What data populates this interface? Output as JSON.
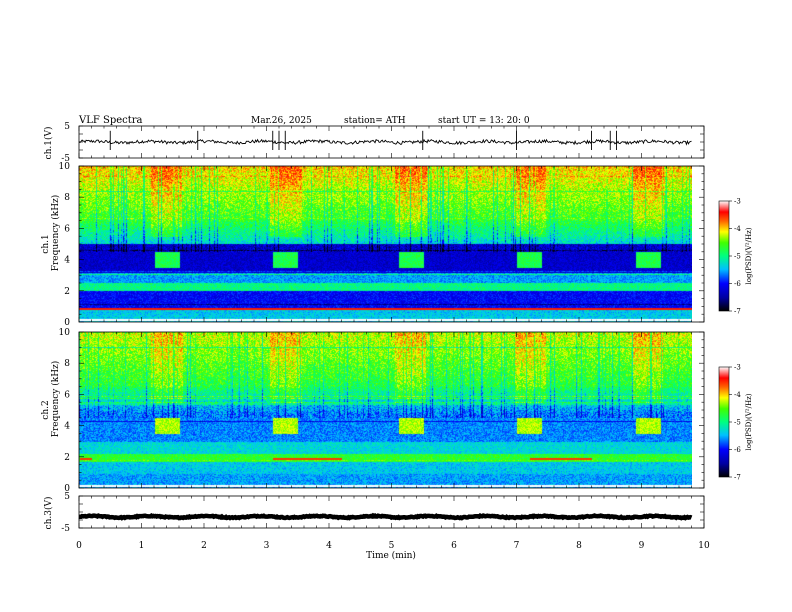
{
  "header": {
    "title": "VLF  Spectra",
    "date": "Mar.26, 2025",
    "station": "station= ATH",
    "start": "start  UT  =    13: 20: 0"
  },
  "chart_data": [
    {
      "id": "ch1-waveform",
      "type": "line",
      "ylabel": "ch.1(V)",
      "ylim": [
        -5,
        5
      ],
      "yticks": [
        5,
        -5
      ],
      "xlim": [
        0,
        10
      ],
      "baseline": 0,
      "noise_amplitude": 0.5,
      "spikes_x": [
        0.5,
        1.9,
        3.1,
        3.2,
        3.3,
        5.5,
        7.0,
        8.2,
        8.5,
        8.6
      ]
    },
    {
      "id": "ch1-spectrogram",
      "type": "heatmap",
      "ylabel_line1": "ch.1",
      "ylabel_line2": "Frequency (kHz)",
      "ylim": [
        0,
        10
      ],
      "yticks": [
        0,
        2,
        4,
        6,
        8,
        10
      ],
      "xlim": [
        0,
        10
      ],
      "data_end_min": 9.8,
      "bursts_min": [
        [
          1.2,
          1.6
        ],
        [
          3.1,
          3.5
        ],
        [
          5.1,
          5.5
        ],
        [
          7.0,
          7.4
        ],
        [
          8.9,
          9.3
        ]
      ],
      "burst_freq_khz": [
        3.5,
        4.5
      ],
      "colorbar": {
        "label": "log(PSD)(V²/Hz)",
        "range": [
          -7,
          -3
        ],
        "ticks": [
          "-3",
          "-4",
          "-5",
          "-6",
          "-7"
        ]
      }
    },
    {
      "id": "ch2-spectrogram",
      "type": "heatmap",
      "ylabel_line1": "ch.2",
      "ylabel_line2": "Frequency (kHz)",
      "ylim": [
        0,
        10
      ],
      "yticks": [
        0,
        2,
        4,
        6,
        8,
        10
      ],
      "xlim": [
        0,
        10
      ],
      "data_end_min": 9.8,
      "bursts_min": [
        [
          1.2,
          1.6
        ],
        [
          3.1,
          3.5
        ],
        [
          5.1,
          5.5
        ],
        [
          7.0,
          7.4
        ],
        [
          8.9,
          9.3
        ]
      ],
      "burst_freq_khz": [
        3.5,
        4.5
      ],
      "colorbar": {
        "label": "log(PSD)(V²/Hz)",
        "range": [
          -7,
          -3
        ],
        "ticks": [
          "-3",
          "-4",
          "-5",
          "-6",
          "-7"
        ]
      }
    },
    {
      "id": "ch3-waveform",
      "type": "line",
      "ylabel": "ch.3(V)",
      "ylim": [
        -5,
        5
      ],
      "yticks": [
        5,
        -5
      ],
      "xlim": [
        0,
        10
      ],
      "baseline": -1.5,
      "noise_amplitude": 0.15,
      "xlabel": "Time  (min)",
      "xticks": [
        "0",
        "1",
        "2",
        "3",
        "4",
        "5",
        "6",
        "7",
        "8",
        "9",
        "10"
      ]
    }
  ],
  "colors": {
    "scale": [
      "#000080",
      "#0000ff",
      "#0080ff",
      "#00ffff",
      "#00ff80",
      "#00ff00",
      "#ffff00",
      "#ff8000",
      "#ff0000",
      "#ffffff"
    ]
  }
}
